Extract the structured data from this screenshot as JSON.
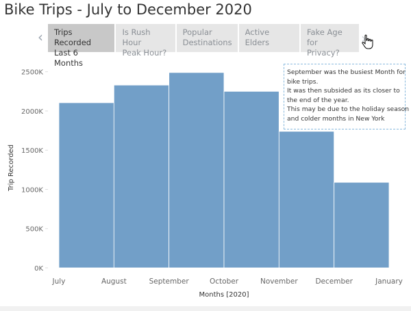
{
  "page": {
    "title": "Bike Trips - July to December 2020"
  },
  "nav": {
    "prev_icon": "chevron-left-icon",
    "next_icon": "chevron-right-icon",
    "cursor_icon": "hand-pointer-icon",
    "tabs": [
      {
        "line1": "Trips Recorded",
        "line2": "Last 6 Months",
        "active": true
      },
      {
        "line1": "Is Rush Hour",
        "line2": "Peak Hour?",
        "active": false
      },
      {
        "line1": "Popular",
        "line2": "Destinations",
        "active": false
      },
      {
        "line1": "Active Elders",
        "line2": "",
        "active": false
      },
      {
        "line1": "Fake Age for",
        "line2": "Privacy?",
        "active": false
      }
    ]
  },
  "annotation": {
    "lines": [
      "September was the busiest Month for",
      "bike trips.",
      "It was then subsided as its closer to",
      "the end of the year.",
      "This may be due to the holiday season",
      "and colder months in New York"
    ]
  },
  "colors": {
    "bar": "#729fc8",
    "bar_divider": "#ffffff",
    "accent_border": "#88b9dd"
  },
  "chart_data": {
    "type": "bar",
    "title": "",
    "xlabel": "Months [2020]",
    "ylabel": "Trip Recorded",
    "categories": [
      "July",
      "August",
      "September",
      "October",
      "November",
      "December"
    ],
    "values": [
      2105000,
      2330000,
      2490000,
      2250000,
      1740000,
      1090000
    ],
    "x_tick_labels": [
      "July",
      "August",
      "September",
      "October",
      "November",
      "December",
      "January"
    ],
    "y_tick_labels": [
      "0K",
      "500K",
      "1000K",
      "1500K",
      "2000K",
      "2500K"
    ],
    "ylim": [
      0,
      2550000
    ],
    "grid": false,
    "legend": "none"
  }
}
